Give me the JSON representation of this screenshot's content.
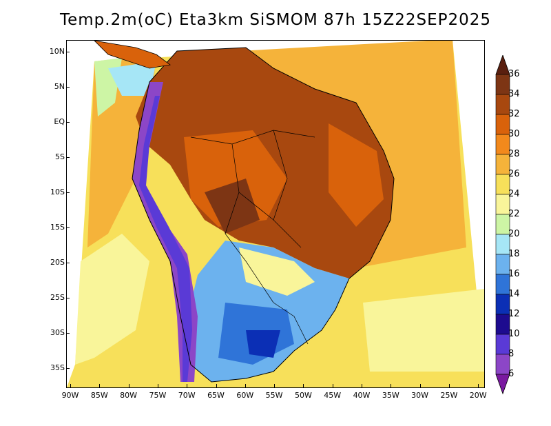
{
  "title": "Temp.2m(oC) Eta3km SiSMOM 87h 15Z22SEP2025",
  "lat_labels": [
    "10N",
    "5N",
    "EQ",
    "5S",
    "10S",
    "15S",
    "20S",
    "25S",
    "30S",
    "35S"
  ],
  "lon_labels": [
    "90W",
    "85W",
    "80W",
    "75W",
    "70W",
    "65W",
    "60W",
    "55W",
    "50W",
    "45W",
    "40W",
    "35W",
    "30W",
    "25W",
    "20W"
  ],
  "colorbar": {
    "labels": [
      "36",
      "34",
      "32",
      "30",
      "28",
      "26",
      "24",
      "22",
      "20",
      "18",
      "16",
      "14",
      "12",
      "10",
      "8",
      "6"
    ],
    "colors": [
      "#5a1f0f",
      "#7d3514",
      "#a8480f",
      "#d9620b",
      "#f2891c",
      "#f5b33a",
      "#f7e05a",
      "#f9f59a",
      "#cdf5a5",
      "#a6e6f6",
      "#6cb2ee",
      "#2f74d8",
      "#0b2fb5",
      "#1d0b8f",
      "#5a3ad6",
      "#8c46c7",
      "#7a19a0"
    ]
  },
  "palette": {
    "ocean_warm": "#f5b33a",
    "ocean_mid": "#f7e05a",
    "ocean_cool": "#f9f59a",
    "land_hot": "#a8480f",
    "land_warm": "#d9620b",
    "land_darkest": "#7d3514",
    "cold_south": "#6cb2ee",
    "colder_south": "#2f74d8",
    "andes": "#5a1f0f"
  }
}
